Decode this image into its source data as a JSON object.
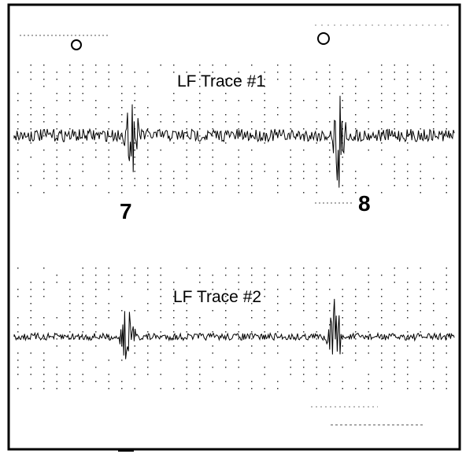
{
  "traces": [
    {
      "label": "LF Trace #1",
      "marker": "7"
    },
    {
      "label": "LF Trace #2"
    }
  ],
  "marker_8": "8"
}
